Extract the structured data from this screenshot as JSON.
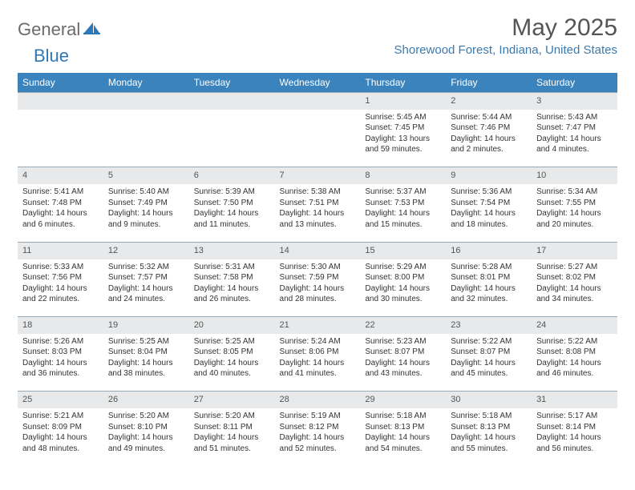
{
  "brand": {
    "part1": "General",
    "part2": "Blue"
  },
  "title": "May 2025",
  "location": "Shorewood Forest, Indiana, United States",
  "colors": {
    "header_bg": "#3b83bd",
    "daynum_bg": "#e7e9ea",
    "rule": "#9aa8b3",
    "brand_gray": "#6b6b6b",
    "brand_blue": "#2f78b7",
    "location_blue": "#3b7ab0",
    "text": "#333333",
    "bg": "#ffffff"
  },
  "weekday_headers": [
    "Sunday",
    "Monday",
    "Tuesday",
    "Wednesday",
    "Thursday",
    "Friday",
    "Saturday"
  ],
  "weeks": [
    [
      null,
      null,
      null,
      null,
      {
        "n": "1",
        "sr": "5:45 AM",
        "ss": "7:45 PM",
        "dl": "13 hours and 59 minutes."
      },
      {
        "n": "2",
        "sr": "5:44 AM",
        "ss": "7:46 PM",
        "dl": "14 hours and 2 minutes."
      },
      {
        "n": "3",
        "sr": "5:43 AM",
        "ss": "7:47 PM",
        "dl": "14 hours and 4 minutes."
      }
    ],
    [
      {
        "n": "4",
        "sr": "5:41 AM",
        "ss": "7:48 PM",
        "dl": "14 hours and 6 minutes."
      },
      {
        "n": "5",
        "sr": "5:40 AM",
        "ss": "7:49 PM",
        "dl": "14 hours and 9 minutes."
      },
      {
        "n": "6",
        "sr": "5:39 AM",
        "ss": "7:50 PM",
        "dl": "14 hours and 11 minutes."
      },
      {
        "n": "7",
        "sr": "5:38 AM",
        "ss": "7:51 PM",
        "dl": "14 hours and 13 minutes."
      },
      {
        "n": "8",
        "sr": "5:37 AM",
        "ss": "7:53 PM",
        "dl": "14 hours and 15 minutes."
      },
      {
        "n": "9",
        "sr": "5:36 AM",
        "ss": "7:54 PM",
        "dl": "14 hours and 18 minutes."
      },
      {
        "n": "10",
        "sr": "5:34 AM",
        "ss": "7:55 PM",
        "dl": "14 hours and 20 minutes."
      }
    ],
    [
      {
        "n": "11",
        "sr": "5:33 AM",
        "ss": "7:56 PM",
        "dl": "14 hours and 22 minutes."
      },
      {
        "n": "12",
        "sr": "5:32 AM",
        "ss": "7:57 PM",
        "dl": "14 hours and 24 minutes."
      },
      {
        "n": "13",
        "sr": "5:31 AM",
        "ss": "7:58 PM",
        "dl": "14 hours and 26 minutes."
      },
      {
        "n": "14",
        "sr": "5:30 AM",
        "ss": "7:59 PM",
        "dl": "14 hours and 28 minutes."
      },
      {
        "n": "15",
        "sr": "5:29 AM",
        "ss": "8:00 PM",
        "dl": "14 hours and 30 minutes."
      },
      {
        "n": "16",
        "sr": "5:28 AM",
        "ss": "8:01 PM",
        "dl": "14 hours and 32 minutes."
      },
      {
        "n": "17",
        "sr": "5:27 AM",
        "ss": "8:02 PM",
        "dl": "14 hours and 34 minutes."
      }
    ],
    [
      {
        "n": "18",
        "sr": "5:26 AM",
        "ss": "8:03 PM",
        "dl": "14 hours and 36 minutes."
      },
      {
        "n": "19",
        "sr": "5:25 AM",
        "ss": "8:04 PM",
        "dl": "14 hours and 38 minutes."
      },
      {
        "n": "20",
        "sr": "5:25 AM",
        "ss": "8:05 PM",
        "dl": "14 hours and 40 minutes."
      },
      {
        "n": "21",
        "sr": "5:24 AM",
        "ss": "8:06 PM",
        "dl": "14 hours and 41 minutes."
      },
      {
        "n": "22",
        "sr": "5:23 AM",
        "ss": "8:07 PM",
        "dl": "14 hours and 43 minutes."
      },
      {
        "n": "23",
        "sr": "5:22 AM",
        "ss": "8:07 PM",
        "dl": "14 hours and 45 minutes."
      },
      {
        "n": "24",
        "sr": "5:22 AM",
        "ss": "8:08 PM",
        "dl": "14 hours and 46 minutes."
      }
    ],
    [
      {
        "n": "25",
        "sr": "5:21 AM",
        "ss": "8:09 PM",
        "dl": "14 hours and 48 minutes."
      },
      {
        "n": "26",
        "sr": "5:20 AM",
        "ss": "8:10 PM",
        "dl": "14 hours and 49 minutes."
      },
      {
        "n": "27",
        "sr": "5:20 AM",
        "ss": "8:11 PM",
        "dl": "14 hours and 51 minutes."
      },
      {
        "n": "28",
        "sr": "5:19 AM",
        "ss": "8:12 PM",
        "dl": "14 hours and 52 minutes."
      },
      {
        "n": "29",
        "sr": "5:18 AM",
        "ss": "8:13 PM",
        "dl": "14 hours and 54 minutes."
      },
      {
        "n": "30",
        "sr": "5:18 AM",
        "ss": "8:13 PM",
        "dl": "14 hours and 55 minutes."
      },
      {
        "n": "31",
        "sr": "5:17 AM",
        "ss": "8:14 PM",
        "dl": "14 hours and 56 minutes."
      }
    ]
  ],
  "labels": {
    "sunrise": "Sunrise:",
    "sunset": "Sunset:",
    "daylight": "Daylight:"
  }
}
